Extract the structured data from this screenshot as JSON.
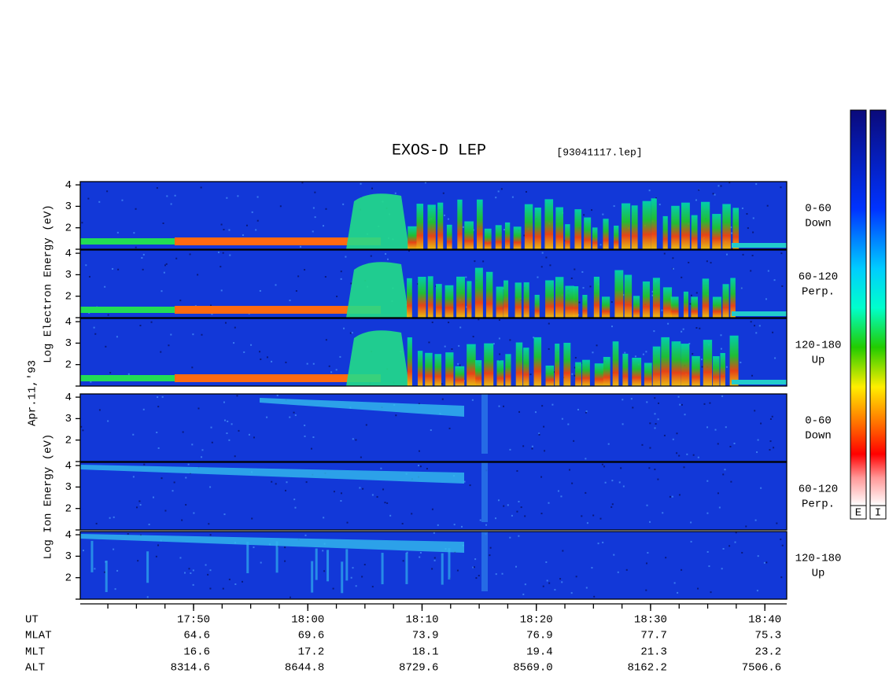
{
  "chart_data": {
    "type": "spectrogram",
    "title": "EXOS-D LEP",
    "subtitle": "[93041117.lep]",
    "date_label": "Apr.11,'93",
    "ylim": [
      1,
      4.15
    ],
    "yticks": [
      2,
      3,
      4
    ],
    "xlim": [
      "17:40:05",
      "18:41:55"
    ],
    "xticks": [
      "17:50",
      "18:00",
      "18:10",
      "18:20",
      "18:30",
      "18:40"
    ],
    "groups": [
      {
        "ylabel": "Log Electron Energy (eV)",
        "panels": [
          {
            "angle": "0-60",
            "direction": "Down"
          },
          {
            "angle": "60-120",
            "direction": "Perp."
          },
          {
            "angle": "120-180",
            "direction": "Up"
          }
        ]
      },
      {
        "ylabel": "Log Ion Energy (eV)",
        "panels": [
          {
            "angle": "0-60",
            "direction": "Down"
          },
          {
            "angle": "60-120",
            "direction": "Perp."
          },
          {
            "angle": "120-180",
            "direction": "Up"
          }
        ]
      }
    ],
    "ephemeris": [
      {
        "name": "UT"
      },
      {
        "name": "MLAT",
        "values": [
          "64.6",
          "69.6",
          "73.9",
          "76.9",
          "77.7",
          "75.3"
        ]
      },
      {
        "name": "MLT",
        "values": [
          "16.6",
          "17.2",
          "18.1",
          "19.4",
          "21.3",
          "23.2"
        ]
      },
      {
        "name": "ALT",
        "values": [
          "8314.6",
          "8644.8",
          "8729.6",
          "8569.0",
          "8162.2",
          "7506.6"
        ]
      }
    ],
    "colorbars": [
      "E",
      "I"
    ]
  }
}
